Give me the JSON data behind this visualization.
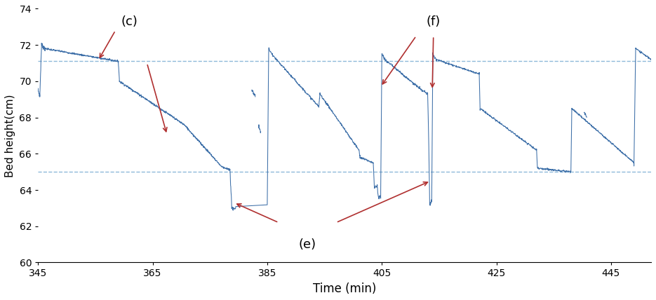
{
  "xlim": [
    345,
    452
  ],
  "ylim": [
    60,
    74
  ],
  "xlabel": "Time (min)",
  "ylabel": "Bed height(cm)",
  "hline1": 71.1,
  "hline2": 65.0,
  "hline_color": "#7aadd4",
  "line_color": "#3d6fa8",
  "arrow_color": "#b03030",
  "background_color": "#ffffff",
  "xticks": [
    345,
    365,
    385,
    405,
    425,
    445
  ],
  "yticks": [
    60,
    62,
    64,
    66,
    68,
    70,
    72,
    74
  ],
  "label_c": "(c)",
  "label_e": "(e)",
  "label_f": "(f)"
}
